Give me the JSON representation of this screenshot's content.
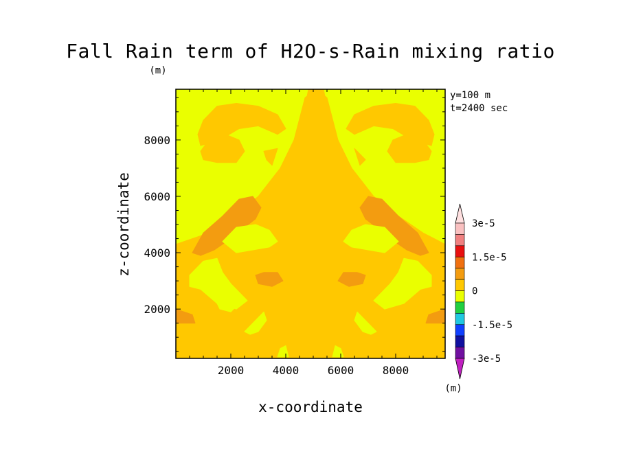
{
  "chart_data": {
    "type": "heatmap",
    "title": "Fall Rain term of H2O-s-Rain mixing ratio",
    "subtitle": "(m)",
    "xlabel": "x-coordinate",
    "ylabel": "z-coordinate",
    "xlim": [
      0,
      10000
    ],
    "ylim": [
      0,
      10000
    ],
    "x_ticks": [
      2000,
      4000,
      6000,
      8000
    ],
    "y_ticks": [
      2000,
      4000,
      6000,
      8000
    ],
    "info": [
      "y=100 m",
      "t=2400 sec"
    ],
    "background_level": "0 to 7.5e-6",
    "colorbar": {
      "unit": "(m)",
      "labels": [
        "3e-5",
        "1.5e-5",
        "0",
        "-1.5e-5",
        "-3e-5"
      ],
      "colors": [
        "#f9c0c0",
        "#f08080",
        "#e81010",
        "#f07010",
        "#f39c10",
        "#ffc800",
        "#eaff00",
        "#20d040",
        "#20c8e0",
        "#1040ff",
        "#1010a0",
        "#7010a0"
      ],
      "top_arrow_color": "#ffe0e0",
      "bottom_arrow_color": "#c020c0"
    },
    "regions": [
      {
        "level": "7.5e-6 to 1.5e-5",
        "color": "#f39c10",
        "points": [
          [
            5100,
            9600
          ],
          [
            4700,
            9300
          ],
          [
            4500,
            8800
          ],
          [
            4300,
            7800
          ],
          [
            4000,
            6500
          ],
          [
            3800,
            5800
          ],
          [
            3300,
            5000
          ],
          [
            2700,
            4300
          ],
          [
            2000,
            3700
          ],
          [
            1500,
            3600
          ],
          [
            1200,
            4000
          ],
          [
            1500,
            4600
          ],
          [
            2200,
            5200
          ],
          [
            2900,
            5800
          ],
          [
            3400,
            6300
          ],
          [
            3900,
            6900
          ],
          [
            4300,
            7800
          ],
          [
            4500,
            8800
          ],
          [
            4700,
            9300
          ],
          [
            5100,
            9600
          ]
        ]
      },
      {
        "level": "0 to 7.5e-6",
        "color": "#eaff00",
        "points": [
          [
            0,
            9800
          ],
          [
            4800,
            9800
          ],
          [
            4700,
            9300
          ],
          [
            4500,
            8800
          ],
          [
            4300,
            7800
          ],
          [
            4100,
            7200
          ],
          [
            3800,
            6500
          ],
          [
            3400,
            6000
          ],
          [
            3000,
            5600
          ],
          [
            2600,
            5300
          ],
          [
            2100,
            5000
          ],
          [
            1600,
            4700
          ],
          [
            1000,
            4400
          ],
          [
            300,
            4300
          ],
          [
            0,
            4200
          ]
        ]
      },
      {
        "level": "0 to 7.5e-6",
        "color": "#eaff00",
        "points": [
          [
            9800,
            9800
          ],
          [
            5400,
            9800
          ],
          [
            5500,
            9300
          ],
          [
            5700,
            8800
          ],
          [
            5900,
            7800
          ],
          [
            6100,
            7200
          ],
          [
            6400,
            6500
          ],
          [
            6800,
            6000
          ],
          [
            7200,
            5600
          ],
          [
            7600,
            5300
          ],
          [
            8100,
            5000
          ],
          [
            8600,
            4700
          ],
          [
            9200,
            4400
          ],
          [
            9600,
            4300
          ],
          [
            9800,
            4200
          ]
        ]
      },
      {
        "level": "7.5e-6 to 1.5e-5",
        "color": "#ffc800",
        "points": [
          [
            1000,
            8700
          ],
          [
            1500,
            9200
          ],
          [
            2200,
            9300
          ],
          [
            3000,
            9200
          ],
          [
            3700,
            8900
          ],
          [
            4000,
            8400
          ],
          [
            3700,
            8200
          ],
          [
            3000,
            8500
          ],
          [
            2300,
            8400
          ],
          [
            1600,
            8000
          ],
          [
            900,
            7800
          ],
          [
            800,
            8200
          ]
        ]
      },
      {
        "level": "7.5e-6 to 1.5e-5",
        "color": "#ffc800",
        "points": [
          [
            9200,
            8700
          ],
          [
            8700,
            9200
          ],
          [
            8000,
            9300
          ],
          [
            7200,
            9200
          ],
          [
            6500,
            8900
          ],
          [
            6200,
            8400
          ],
          [
            6500,
            8200
          ],
          [
            7200,
            8500
          ],
          [
            7900,
            8400
          ],
          [
            8600,
            8000
          ],
          [
            9300,
            7800
          ],
          [
            9400,
            8200
          ]
        ]
      },
      {
        "level": "7.5e-6 to 1.5e-5",
        "color": "#ffc800",
        "points": [
          [
            900,
            7600
          ],
          [
            1200,
            8000
          ],
          [
            1800,
            8200
          ],
          [
            2300,
            8000
          ],
          [
            2500,
            7600
          ],
          [
            2200,
            7200
          ],
          [
            1500,
            7200
          ],
          [
            1000,
            7300
          ]
        ]
      },
      {
        "level": "7.5e-6 to 1.5e-5",
        "color": "#ffc800",
        "points": [
          [
            9300,
            7600
          ],
          [
            9000,
            8000
          ],
          [
            8400,
            8200
          ],
          [
            7900,
            8000
          ],
          [
            7700,
            7600
          ],
          [
            8000,
            7200
          ],
          [
            8700,
            7200
          ],
          [
            9200,
            7300
          ]
        ]
      },
      {
        "level": "7.5e-6 to 1.5e-5",
        "color": "#ffc800",
        "points": [
          [
            3200,
            7600
          ],
          [
            3700,
            7700
          ],
          [
            3500,
            7100
          ],
          [
            3300,
            7300
          ]
        ]
      },
      {
        "level": "7.5e-6 to 1.5e-5",
        "color": "#ffc800",
        "points": [
          [
            6600,
            7600
          ],
          [
            6500,
            7700
          ],
          [
            6700,
            7100
          ],
          [
            6900,
            7300
          ]
        ]
      },
      {
        "level": "7.5e-6 to 1.5e-5",
        "color": "#ffc800",
        "points": [
          [
            0,
            4300
          ],
          [
            0,
            250
          ],
          [
            9800,
            250
          ],
          [
            9800,
            4300
          ],
          [
            9000,
            4700
          ],
          [
            8100,
            5300
          ],
          [
            7200,
            6000
          ],
          [
            6400,
            7000
          ],
          [
            5900,
            8000
          ],
          [
            5500,
            9500
          ],
          [
            5100,
            9800
          ],
          [
            4700,
            9500
          ],
          [
            4300,
            8000
          ],
          [
            3800,
            7000
          ],
          [
            3000,
            6000
          ],
          [
            2100,
            5300
          ],
          [
            1200,
            4700
          ]
        ]
      },
      {
        "level": "7.5e-6 to 1.5e-5",
        "color": "#f39c10",
        "points": [
          [
            600,
            4000
          ],
          [
            1000,
            4700
          ],
          [
            1700,
            5300
          ],
          [
            2300,
            5900
          ],
          [
            2800,
            6000
          ],
          [
            3100,
            5600
          ],
          [
            2900,
            5200
          ],
          [
            2500,
            4900
          ],
          [
            2000,
            4500
          ],
          [
            1400,
            4100
          ],
          [
            900,
            3900
          ]
        ]
      },
      {
        "level": "7.5e-6 to 1.5e-5",
        "color": "#f39c10",
        "points": [
          [
            9200,
            4000
          ],
          [
            8800,
            4700
          ],
          [
            8100,
            5300
          ],
          [
            7500,
            5900
          ],
          [
            7000,
            6000
          ],
          [
            6700,
            5600
          ],
          [
            6900,
            5200
          ],
          [
            7300,
            4900
          ],
          [
            7800,
            4500
          ],
          [
            8400,
            4100
          ],
          [
            8900,
            3900
          ]
        ]
      },
      {
        "level": "0 to 7.5e-6",
        "color": "#eaff00",
        "points": [
          [
            1700,
            4400
          ],
          [
            2200,
            4900
          ],
          [
            2900,
            5000
          ],
          [
            3400,
            4800
          ],
          [
            3700,
            4400
          ],
          [
            3400,
            4200
          ],
          [
            2800,
            4100
          ],
          [
            2200,
            4000
          ]
        ]
      },
      {
        "level": "0 to 7.5e-6",
        "color": "#eaff00",
        "points": [
          [
            8100,
            4400
          ],
          [
            7600,
            4900
          ],
          [
            6900,
            5000
          ],
          [
            6400,
            4800
          ],
          [
            6100,
            4400
          ],
          [
            6400,
            4200
          ],
          [
            7000,
            4100
          ],
          [
            7600,
            4000
          ]
        ]
      },
      {
        "level": "0 to 7.5e-6",
        "color": "#eaff00",
        "points": [
          [
            500,
            3200
          ],
          [
            1000,
            3700
          ],
          [
            1500,
            3800
          ],
          [
            1700,
            3300
          ],
          [
            2000,
            2900
          ],
          [
            2400,
            2500
          ],
          [
            2600,
            2300
          ],
          [
            2200,
            2000
          ],
          [
            1500,
            2200
          ],
          [
            900,
            2700
          ],
          [
            500,
            2800
          ]
        ]
      },
      {
        "level": "0 to 7.5e-6",
        "color": "#eaff00",
        "points": [
          [
            9300,
            3200
          ],
          [
            8800,
            3700
          ],
          [
            8300,
            3800
          ],
          [
            8100,
            3300
          ],
          [
            7800,
            2900
          ],
          [
            7400,
            2500
          ],
          [
            7200,
            2300
          ],
          [
            7600,
            2000
          ],
          [
            8300,
            2200
          ],
          [
            8900,
            2700
          ],
          [
            9300,
            2800
          ]
        ]
      },
      {
        "level": "7.5e-6 to 1.5e-5",
        "color": "#f39c10",
        "points": [
          [
            2900,
            3200
          ],
          [
            3200,
            3300
          ],
          [
            3700,
            3300
          ],
          [
            3900,
            3000
          ],
          [
            3500,
            2800
          ],
          [
            3000,
            2900
          ]
        ]
      },
      {
        "level": "7.5e-6 to 1.5e-5",
        "color": "#f39c10",
        "points": [
          [
            6900,
            3200
          ],
          [
            6600,
            3300
          ],
          [
            6100,
            3300
          ],
          [
            5900,
            3000
          ],
          [
            6300,
            2800
          ],
          [
            6800,
            2900
          ]
        ]
      },
      {
        "level": "0 to 7.5e-6",
        "color": "#eaff00",
        "points": [
          [
            2500,
            1200
          ],
          [
            2900,
            1600
          ],
          [
            3200,
            1900
          ],
          [
            3300,
            1600
          ],
          [
            3000,
            1200
          ],
          [
            2700,
            1100
          ]
        ]
      },
      {
        "level": "0 to 7.5e-6",
        "color": "#eaff00",
        "points": [
          [
            7300,
            1200
          ],
          [
            6900,
            1600
          ],
          [
            6600,
            1900
          ],
          [
            6500,
            1600
          ],
          [
            6800,
            1200
          ],
          [
            7100,
            1100
          ]
        ]
      },
      {
        "level": "0 to 7.5e-6",
        "color": "#eaff00",
        "points": [
          [
            1400,
            2400
          ],
          [
            1700,
            2700
          ],
          [
            2100,
            2600
          ],
          [
            2300,
            2200
          ],
          [
            2000,
            1900
          ],
          [
            1600,
            2000
          ]
        ]
      },
      {
        "level": "0 to 7.5e-6",
        "color": "#eaff00",
        "points": [
          [
            3800,
            600
          ],
          [
            4000,
            700
          ],
          [
            4100,
            300
          ],
          [
            3700,
            300
          ]
        ]
      },
      {
        "level": "0 to 7.5e-6",
        "color": "#eaff00",
        "points": [
          [
            6000,
            600
          ],
          [
            5800,
            700
          ],
          [
            5700,
            300
          ],
          [
            6100,
            300
          ]
        ]
      },
      {
        "level": "7.5e-6 to 1.5e-5",
        "color": "#f39c10",
        "points": [
          [
            0,
            2000
          ],
          [
            600,
            1800
          ],
          [
            700,
            1500
          ],
          [
            0,
            1500
          ]
        ]
      },
      {
        "level": "7.5e-6 to 1.5e-5",
        "color": "#f39c10",
        "points": [
          [
            9800,
            2000
          ],
          [
            9200,
            1800
          ],
          [
            9100,
            1500
          ],
          [
            9800,
            1500
          ]
        ]
      }
    ]
  }
}
